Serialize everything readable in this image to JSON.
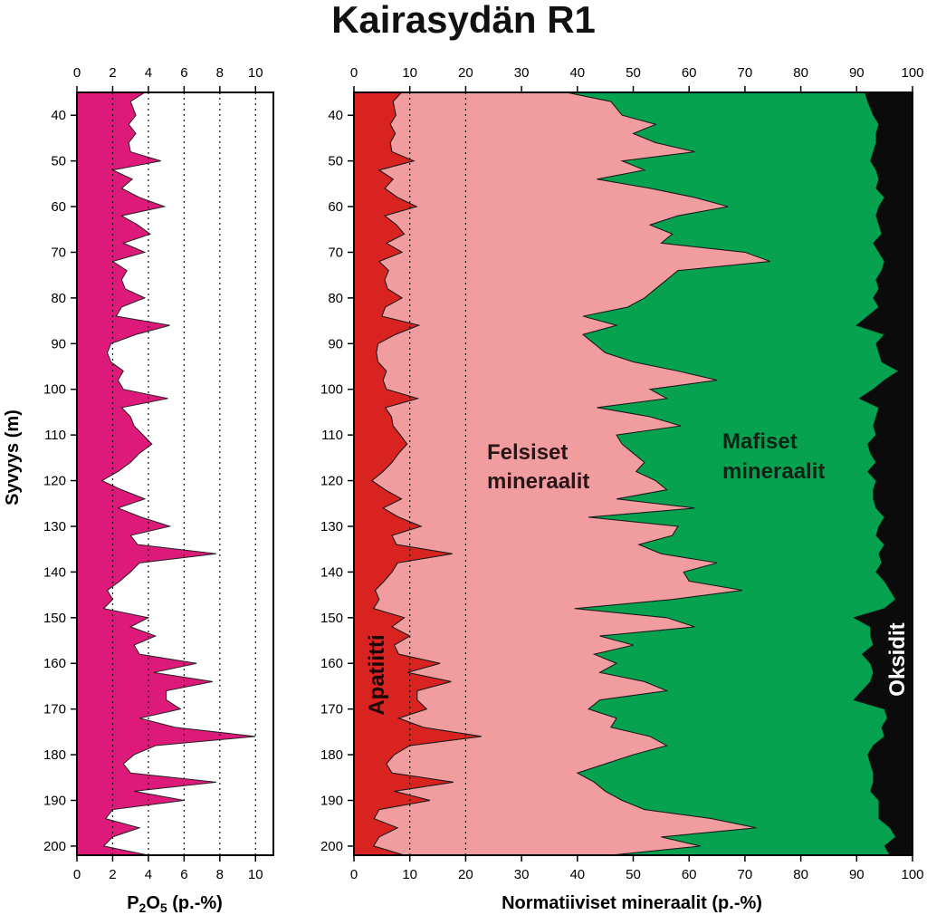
{
  "title": "Kairasydän R1",
  "colors": {
    "p2o5": "#dd1a7a",
    "apatite": "#d82320",
    "felsic": "#f19c9f",
    "mafic": "#06a24f",
    "oxide": "#0b0b0b",
    "axis": "#000000"
  },
  "chart_data": [
    {
      "type": "area",
      "xlabel_main": "P",
      "xlabel_sub1": "2",
      "xlabel_mid": "O",
      "xlabel_sub2": "5",
      "xlabel_unit": " (p.-%)",
      "ylabel": "Syvyys (m)",
      "xlim": [
        0,
        11
      ],
      "ylim": [
        35,
        202
      ],
      "xticks": [
        "0",
        "2",
        "4",
        "6",
        "8",
        "10"
      ],
      "yticks": [
        "40",
        "50",
        "60",
        "70",
        "80",
        "90",
        "100",
        "110",
        "120",
        "130",
        "140",
        "150",
        "160",
        "170",
        "180",
        "190",
        "200"
      ],
      "grid_x": [
        2,
        4,
        6,
        8,
        10
      ],
      "depth": [
        35,
        37,
        40,
        42,
        44,
        46,
        48,
        50,
        52,
        54,
        56,
        58,
        60,
        62,
        64,
        66,
        68,
        70,
        72,
        74,
        76,
        78,
        80,
        82,
        84,
        86,
        88,
        90,
        92,
        94,
        96,
        98,
        100,
        102,
        104,
        106,
        108,
        110,
        112,
        114,
        116,
        118,
        120,
        122,
        124,
        126,
        128,
        130,
        132,
        134,
        136,
        138,
        140,
        142,
        144,
        146,
        148,
        150,
        152,
        154,
        156,
        158,
        160,
        162,
        164,
        166,
        168,
        170,
        172,
        174,
        176,
        178,
        180,
        182,
        184,
        186,
        188,
        190,
        192,
        194,
        196,
        198,
        200,
        202
      ],
      "values": [
        3.8,
        3.0,
        3.3,
        2.9,
        3.3,
        2.9,
        3.0,
        4.7,
        2.0,
        3.1,
        2.5,
        3.5,
        4.9,
        2.5,
        3.4,
        4.1,
        2.6,
        3.8,
        2.0,
        2.8,
        2.5,
        2.7,
        3.8,
        2.5,
        2.2,
        5.2,
        3.3,
        1.9,
        1.7,
        1.9,
        2.6,
        2.3,
        2.6,
        5.1,
        2.5,
        3.0,
        3.2,
        3.7,
        4.2,
        3.5,
        3.0,
        2.3,
        1.4,
        2.5,
        3.8,
        2.3,
        3.6,
        5.2,
        3.0,
        3.4,
        7.8,
        3.5,
        3.0,
        2.4,
        1.7,
        2.0,
        1.5,
        4.0,
        3.0,
        4.4,
        3.2,
        3.5,
        6.7,
        4.3,
        7.6,
        5.0,
        5.0,
        5.8,
        3.5,
        5.5,
        10.0,
        4.4,
        3.2,
        2.6,
        3.0,
        7.8,
        3.2,
        6.0,
        2.0,
        1.6,
        3.5,
        2.0,
        1.5,
        4.0
      ]
    },
    {
      "type": "area",
      "stacked": true,
      "xlabel": "Normatiiviset mineraalit (p.-%)",
      "xlim": [
        0,
        100
      ],
      "ylim": [
        35,
        202
      ],
      "xticks": [
        "0",
        "10",
        "20",
        "30",
        "40",
        "50",
        "60",
        "70",
        "80",
        "90",
        "100"
      ],
      "yticks": [
        "40",
        "50",
        "60",
        "70",
        "80",
        "90",
        "100",
        "110",
        "120",
        "130",
        "140",
        "150",
        "160",
        "170",
        "180",
        "190",
        "200"
      ],
      "grid_x": [
        10,
        20
      ],
      "depth": [
        35,
        37,
        40,
        42,
        44,
        46,
        48,
        50,
        52,
        54,
        56,
        58,
        60,
        62,
        64,
        66,
        68,
        70,
        72,
        74,
        76,
        78,
        80,
        82,
        84,
        86,
        88,
        90,
        92,
        94,
        96,
        98,
        100,
        102,
        104,
        106,
        108,
        110,
        112,
        114,
        116,
        118,
        120,
        122,
        124,
        126,
        128,
        130,
        132,
        134,
        136,
        138,
        140,
        142,
        144,
        146,
        148,
        150,
        152,
        154,
        156,
        158,
        160,
        162,
        164,
        166,
        168,
        170,
        172,
        174,
        176,
        178,
        180,
        182,
        184,
        186,
        188,
        190,
        192,
        194,
        196,
        198,
        200,
        202
      ],
      "series": [
        {
          "name": "Apatiitti",
          "values": [
            8.5,
            7.0,
            7.5,
            6.5,
            7.4,
            6.5,
            6.8,
            10.7,
            4.5,
            7.0,
            5.5,
            7.8,
            11.2,
            5.5,
            7.6,
            9.0,
            5.8,
            8.6,
            4.5,
            6.2,
            5.5,
            6.0,
            8.6,
            5.6,
            5.0,
            11.6,
            7.4,
            4.3,
            4.0,
            4.3,
            5.8,
            5.2,
            5.8,
            11.4,
            5.6,
            6.7,
            7.0,
            8.3,
            9.5,
            8.0,
            6.8,
            5.2,
            3.2,
            5.6,
            8.5,
            5.2,
            8.0,
            12.0,
            6.8,
            7.6,
            17.6,
            7.8,
            6.8,
            5.4,
            3.8,
            4.5,
            3.5,
            9.0,
            6.8,
            10.0,
            7.2,
            8.0,
            15.4,
            9.6,
            17.4,
            11.3,
            11.3,
            13.0,
            8.0,
            12.4,
            22.8,
            10.0,
            7.2,
            5.8,
            6.8,
            17.8,
            7.2,
            13.6,
            4.5,
            3.6,
            7.8,
            4.5,
            3.5,
            9.0
          ]
        },
        {
          "name": "Felsiset mineraalit",
          "values": [
            38.0,
            46.0,
            48.0,
            54.0,
            50.0,
            54.0,
            61.0,
            48.0,
            52.0,
            43.5,
            53.0,
            61.0,
            67.0,
            58.0,
            53.0,
            57.0,
            55.0,
            70.0,
            74.5,
            58.0,
            56.0,
            54.0,
            52.0,
            49.0,
            41.0,
            47.0,
            41.0,
            43.0,
            45.0,
            50.0,
            58.0,
            65.0,
            53.0,
            56.0,
            43.5,
            53.0,
            58.5,
            47.0,
            48.0,
            50.0,
            52.0,
            50.5,
            54.0,
            56.0,
            47.0,
            61.0,
            42.0,
            58.0,
            57.0,
            51.0,
            55.0,
            65.0,
            59.0,
            60.0,
            69.5,
            57.0,
            39.5,
            56.0,
            61.0,
            44.0,
            50.0,
            43.0,
            47.0,
            44.0,
            52.0,
            56.0,
            44.0,
            42.0,
            47.0,
            46.0,
            53.0,
            56.0,
            50.0,
            45.0,
            40.0,
            43.0,
            45.0,
            48.0,
            52.0,
            64.0,
            72.0,
            55.0,
            62.0,
            46.0
          ]
        },
        {
          "name": "Mafiset mineraalit",
          "values": [
            91.5,
            92.0,
            93.0,
            94.0,
            93.5,
            93.5,
            93.0,
            92.5,
            93.5,
            94.0,
            93.5,
            95.0,
            94.0,
            93.5,
            94.0,
            94.5,
            93.0,
            94.0,
            95.0,
            94.5,
            93.5,
            94.0,
            93.0,
            94.0,
            92.0,
            90.0,
            95.0,
            93.5,
            94.0,
            94.5,
            97.5,
            95.0,
            93.0,
            90.5,
            94.0,
            93.5,
            93.0,
            93.5,
            92.0,
            92.5,
            93.5,
            92.0,
            93.5,
            93.0,
            93.0,
            93.5,
            95.0,
            94.0,
            93.5,
            95.0,
            94.0,
            94.5,
            93.5,
            95.0,
            96.0,
            97.0,
            95.0,
            89.5,
            92.5,
            92.5,
            93.0,
            91.0,
            92.5,
            93.0,
            92.5,
            91.0,
            89.5,
            95.0,
            95.5,
            94.5,
            95.0,
            93.0,
            92.0,
            92.5,
            93.0,
            93.0,
            92.5,
            94.0,
            94.0,
            94.0,
            96.0,
            97.0,
            95.0,
            96.0
          ]
        },
        {
          "name": "Oksidit",
          "values": [
            100,
            100,
            100,
            100,
            100,
            100,
            100,
            100,
            100,
            100,
            100,
            100,
            100,
            100,
            100,
            100,
            100,
            100,
            100,
            100,
            100,
            100,
            100,
            100,
            100,
            100,
            100,
            100,
            100,
            100,
            100,
            100,
            100,
            100,
            100,
            100,
            100,
            100,
            100,
            100,
            100,
            100,
            100,
            100,
            100,
            100,
            100,
            100,
            100,
            100,
            100,
            100,
            100,
            100,
            100,
            100,
            100,
            100,
            100,
            100,
            100,
            100,
            100,
            100,
            100,
            100,
            100,
            100,
            100,
            100,
            100,
            100,
            100,
            100,
            100,
            100,
            100,
            100,
            100,
            100,
            100,
            100,
            100,
            100
          ]
        }
      ],
      "area_labels": {
        "felsic_line1": "Felsiset",
        "felsic_line2": "mineraalit",
        "mafic_line1": "Mafiset",
        "mafic_line2": "mineraalit",
        "apatite": "Apatiitti",
        "oxide": "Oksidit"
      }
    }
  ]
}
